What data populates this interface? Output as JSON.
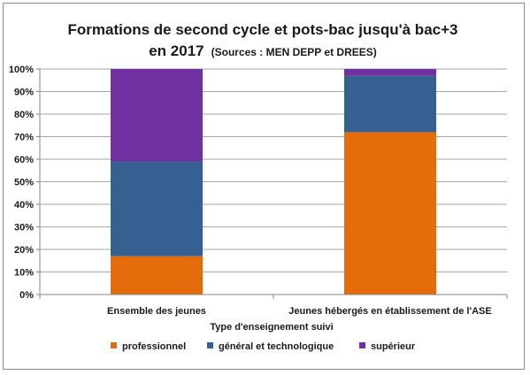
{
  "chart_data": {
    "type": "bar",
    "stacked": true,
    "percent": true,
    "title": "Formations de second cycle et pots-bac jusqu'à bac+3",
    "subtitle_year": "en 2017",
    "subtitle_source": "(Sources : MEN DEPP et DREES)",
    "xlabel": "Type d'enseignement suivi",
    "ylabel": "",
    "ylim": [
      0,
      1
    ],
    "yticks": [
      "0%",
      "10%",
      "20%",
      "30%",
      "40%",
      "50%",
      "60%",
      "70%",
      "80%",
      "90%",
      "100%"
    ],
    "grid": true,
    "legend_position": "bottom",
    "categories": [
      "Ensemble des jeunes",
      "Jeunes hébergés en établissement de l'ASE"
    ],
    "series": [
      {
        "name": "professionnel",
        "color": "#E46C0A",
        "values": [
          0.17,
          0.72
        ]
      },
      {
        "name": "général et technologique",
        "color": "#366092",
        "values": [
          0.42,
          0.25
        ]
      },
      {
        "name": "supérieur",
        "color": "#7030A0",
        "values": [
          0.41,
          0.03
        ]
      }
    ]
  }
}
